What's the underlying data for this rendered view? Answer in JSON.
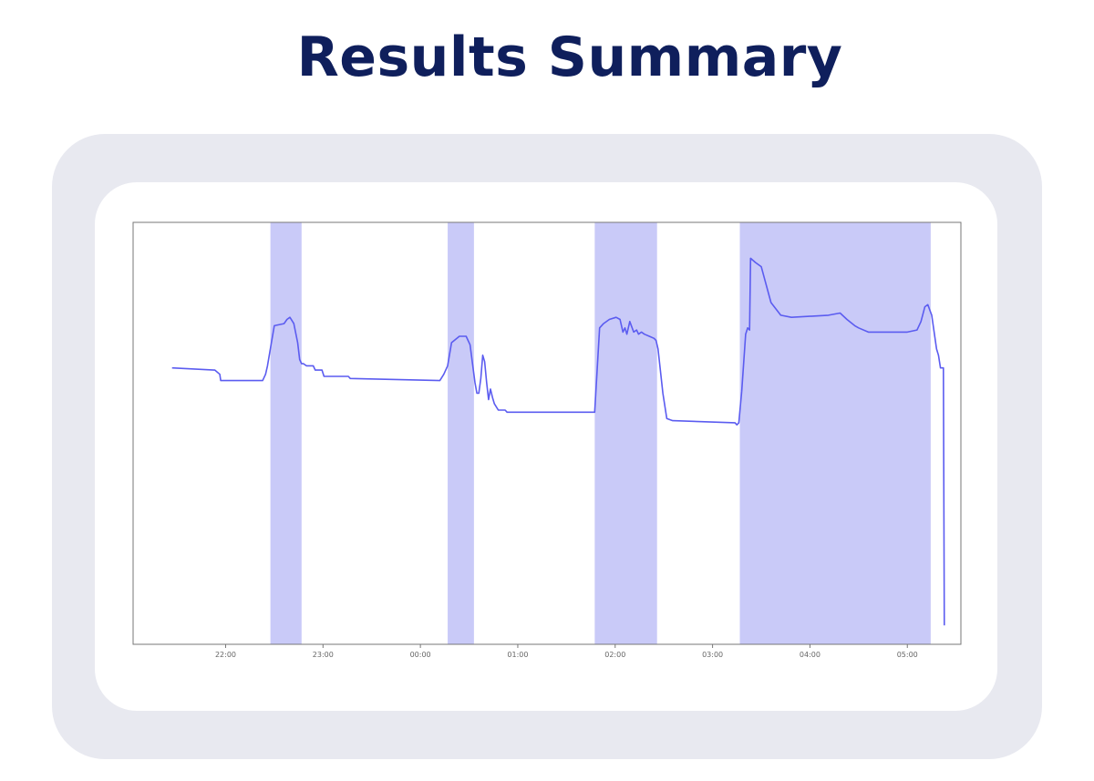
{
  "page": {
    "title": "Results Summary"
  },
  "colors": {
    "title": "#0f1f5c",
    "outer_card": "#e8e9f0",
    "inner_card": "#ffffff",
    "line": "#5b5cf0",
    "highlight": "#c9caf8",
    "axis": "#777777",
    "tick_text": "#666666"
  },
  "chart_data": {
    "type": "line",
    "title": "",
    "xlabel": "",
    "ylabel": "",
    "x_unit": "hours from 22:00",
    "xlim": [
      -0.95,
      7.55
    ],
    "ylim": [
      0,
      100
    ],
    "grid": false,
    "x_ticks": [
      {
        "x": 0,
        "label": "22:00"
      },
      {
        "x": 1,
        "label": "23:00"
      },
      {
        "x": 2,
        "label": "00:00"
      },
      {
        "x": 3,
        "label": "01:00"
      },
      {
        "x": 4,
        "label": "02:00"
      },
      {
        "x": 5,
        "label": "03:00"
      },
      {
        "x": 6,
        "label": "04:00"
      },
      {
        "x": 7,
        "label": "05:00"
      }
    ],
    "highlight_ranges": [
      [
        0.46,
        0.78
      ],
      [
        2.28,
        2.55
      ],
      [
        3.79,
        4.43
      ],
      [
        5.28,
        7.24
      ]
    ],
    "series": [
      {
        "x": [
          -0.55,
          -0.12,
          -0.11,
          -0.06,
          -0.05,
          0.38,
          0.41,
          0.43,
          0.47,
          0.5,
          0.6,
          0.63,
          0.66,
          0.7,
          0.74,
          0.76,
          0.78,
          0.8,
          0.83,
          0.9,
          0.92,
          0.99,
          1.01,
          1.26,
          1.28,
          2.2,
          2.24,
          2.28,
          2.32,
          2.4,
          2.47,
          2.51,
          2.56,
          2.58,
          2.6,
          2.62,
          2.64,
          2.66,
          2.68,
          2.7,
          2.72,
          2.74,
          2.76,
          2.8,
          2.87,
          2.89,
          3.03,
          3.33,
          3.79,
          3.84,
          3.88,
          3.94,
          4.01,
          4.05,
          4.08,
          4.1,
          4.12,
          4.15,
          4.19,
          4.22,
          4.24,
          4.27,
          4.3,
          4.35,
          4.4,
          4.42,
          4.44,
          4.49,
          4.53,
          4.59,
          5.23,
          5.25,
          5.27,
          5.3,
          5.34,
          5.36,
          5.38,
          5.39,
          5.44,
          5.5,
          5.6,
          5.7,
          5.81,
          6.19,
          6.31,
          6.38,
          6.46,
          6.5,
          6.6,
          7.0,
          7.1,
          7.14,
          7.18,
          7.21,
          7.25,
          7.3,
          7.32,
          7.34,
          7.37,
          7.38
        ],
        "y": [
          65.5,
          65.0,
          65.0,
          64.0,
          62.5,
          62.5,
          64.0,
          66.0,
          71.5,
          75.5,
          76.0,
          77.0,
          77.5,
          76.0,
          71.5,
          67.5,
          66.5,
          66.5,
          66.0,
          66.0,
          65.0,
          65.0,
          63.5,
          63.5,
          63.0,
          62.5,
          64.0,
          66.0,
          71.5,
          73.0,
          73.0,
          71.0,
          62.0,
          59.5,
          59.5,
          63.0,
          68.5,
          67.0,
          62.0,
          58.0,
          60.5,
          58.5,
          57.0,
          55.5,
          55.5,
          55.0,
          55.0,
          55.0,
          55.0,
          75.0,
          76.0,
          77.0,
          77.5,
          77.0,
          74.0,
          75.0,
          73.5,
          76.5,
          74.0,
          74.5,
          73.5,
          74.0,
          73.5,
          73.0,
          72.5,
          72.0,
          70.0,
          59.5,
          53.5,
          53.0,
          52.5,
          52.0,
          52.5,
          60.0,
          73.5,
          75.0,
          74.5,
          91.5,
          90.5,
          89.5,
          81.0,
          78.0,
          77.5,
          78.0,
          78.5,
          77.0,
          75.5,
          75.0,
          74.0,
          74.0,
          74.5,
          76.5,
          80.0,
          80.5,
          78.0,
          70.0,
          68.5,
          65.5,
          65.5,
          4.5
        ]
      }
    ]
  }
}
